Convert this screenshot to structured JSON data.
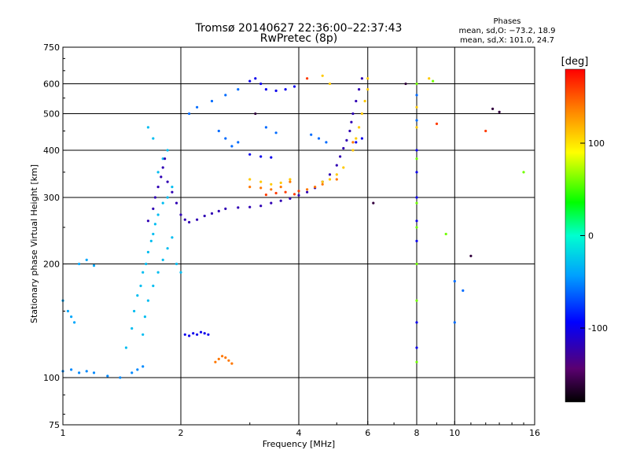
{
  "chart_data": {
    "type": "scatter",
    "title": "Tromsø 20140627 22:36:00–22:37:43",
    "subtitle": "RwPretec (8p)",
    "xlabel": "Frequency [MHz]",
    "ylabel": "Stationary phase Virtual Height [km]",
    "x_scale": "log",
    "y_scale": "log",
    "xlim": [
      1,
      16
    ],
    "ylim": [
      75,
      750
    ],
    "x_ticks": [
      1,
      2,
      4,
      6,
      8,
      10,
      16
    ],
    "y_ticks": [
      75,
      100,
      200,
      300,
      400,
      500,
      600,
      750
    ],
    "grid_x": [
      2,
      4,
      6,
      8,
      10
    ],
    "grid_y": [
      100,
      200,
      300,
      400,
      500,
      600
    ],
    "legend": {
      "title": "Phases",
      "lines": [
        "mean, sd,O: −73.2, 18.9",
        "mean, sd,X: 101.0, 24.7"
      ],
      "placement": "top-right"
    },
    "colorbar": {
      "label": "[deg]",
      "range": [
        -180,
        180
      ],
      "ticks": [
        100,
        0,
        -100
      ]
    },
    "series": [
      {
        "color_deg": -50,
        "points": [
          [
            1.0,
            104
          ],
          [
            1.05,
            105
          ],
          [
            1.1,
            103
          ],
          [
            1.15,
            104
          ],
          [
            1.2,
            103
          ],
          [
            1.3,
            101
          ],
          [
            1.4,
            100
          ],
          [
            1.5,
            103
          ],
          [
            1.55,
            105
          ],
          [
            1.6,
            107
          ]
        ]
      },
      {
        "color_deg": -40,
        "points": [
          [
            1.0,
            160
          ],
          [
            1.03,
            150
          ],
          [
            1.05,
            145
          ],
          [
            1.07,
            140
          ],
          [
            1.1,
            200
          ],
          [
            1.15,
            205
          ],
          [
            1.2,
            198
          ]
        ]
      },
      {
        "color_deg": -30,
        "points": [
          [
            1.45,
            120
          ],
          [
            1.5,
            135
          ],
          [
            1.52,
            150
          ],
          [
            1.55,
            165
          ],
          [
            1.58,
            175
          ],
          [
            1.6,
            190
          ],
          [
            1.63,
            200
          ],
          [
            1.65,
            215
          ],
          [
            1.68,
            230
          ],
          [
            1.7,
            240
          ],
          [
            1.72,
            255
          ],
          [
            1.75,
            270
          ],
          [
            1.8,
            290
          ],
          [
            1.85,
            300
          ],
          [
            1.9,
            320
          ],
          [
            1.75,
            350
          ],
          [
            1.8,
            380
          ],
          [
            1.85,
            400
          ],
          [
            1.7,
            430
          ],
          [
            1.65,
            460
          ],
          [
            1.6,
            130
          ],
          [
            1.62,
            145
          ],
          [
            1.65,
            160
          ],
          [
            1.7,
            175
          ],
          [
            1.75,
            190
          ],
          [
            1.8,
            205
          ],
          [
            1.85,
            220
          ],
          [
            1.9,
            235
          ],
          [
            1.95,
            200
          ],
          [
            2.0,
            190
          ]
        ]
      },
      {
        "color_deg": -120,
        "points": [
          [
            1.65,
            260
          ],
          [
            1.7,
            280
          ],
          [
            1.72,
            300
          ],
          [
            1.75,
            320
          ],
          [
            1.78,
            340
          ],
          [
            1.8,
            360
          ],
          [
            1.82,
            380
          ],
          [
            1.85,
            330
          ],
          [
            1.9,
            310
          ],
          [
            1.95,
            290
          ],
          [
            2.0,
            270
          ],
          [
            2.05,
            262
          ],
          [
            2.1,
            258
          ],
          [
            2.2,
            262
          ],
          [
            2.3,
            268
          ],
          [
            2.4,
            272
          ],
          [
            2.5,
            276
          ],
          [
            2.6,
            280
          ],
          [
            2.8,
            282
          ],
          [
            3.0,
            283
          ],
          [
            3.2,
            285
          ],
          [
            3.4,
            290
          ],
          [
            3.6,
            294
          ],
          [
            3.8,
            298
          ],
          [
            4.0,
            304
          ],
          [
            4.2,
            310
          ],
          [
            4.4,
            318
          ],
          [
            4.6,
            330
          ],
          [
            4.8,
            345
          ],
          [
            5.0,
            365
          ],
          [
            5.1,
            385
          ],
          [
            5.2,
            405
          ],
          [
            5.3,
            425
          ],
          [
            5.4,
            450
          ],
          [
            5.45,
            475
          ],
          [
            5.5,
            500
          ],
          [
            5.6,
            540
          ],
          [
            5.7,
            580
          ],
          [
            5.8,
            620
          ]
        ]
      },
      {
        "color_deg": -100,
        "points": [
          [
            2.05,
            130
          ],
          [
            2.1,
            129
          ],
          [
            2.15,
            131
          ],
          [
            2.2,
            130
          ],
          [
            2.25,
            132
          ],
          [
            2.3,
            131
          ],
          [
            2.35,
            130
          ],
          [
            3.0,
            610
          ],
          [
            3.1,
            620
          ],
          [
            3.2,
            600
          ],
          [
            3.3,
            580
          ],
          [
            3.5,
            575
          ],
          [
            3.7,
            580
          ],
          [
            3.9,
            590
          ],
          [
            3.0,
            390
          ],
          [
            3.2,
            385
          ],
          [
            3.4,
            383
          ],
          [
            5.6,
            420
          ],
          [
            5.8,
            430
          ],
          [
            8.0,
            400
          ],
          [
            8.0,
            350
          ],
          [
            8.0,
            300
          ],
          [
            8.0,
            260
          ],
          [
            8.0,
            230
          ],
          [
            8.0,
            140
          ],
          [
            8.0,
            120
          ]
        ]
      },
      {
        "color_deg": -60,
        "points": [
          [
            2.1,
            500
          ],
          [
            2.2,
            520
          ],
          [
            2.4,
            540
          ],
          [
            2.6,
            560
          ],
          [
            2.8,
            580
          ],
          [
            2.5,
            450
          ],
          [
            2.6,
            430
          ],
          [
            2.7,
            410
          ],
          [
            2.8,
            420
          ],
          [
            3.3,
            460
          ],
          [
            3.5,
            445
          ],
          [
            4.3,
            440
          ],
          [
            4.5,
            430
          ],
          [
            4.7,
            420
          ],
          [
            8.0,
            560
          ],
          [
            8.0,
            480
          ],
          [
            10.0,
            180
          ],
          [
            10.0,
            140
          ],
          [
            10.5,
            170
          ]
        ]
      },
      {
        "color_deg": 140,
        "points": [
          [
            2.45,
            110
          ],
          [
            2.5,
            112
          ],
          [
            2.55,
            114
          ],
          [
            2.6,
            113
          ],
          [
            2.65,
            111
          ],
          [
            2.7,
            109
          ],
          [
            3.0,
            320
          ],
          [
            3.2,
            318
          ],
          [
            3.4,
            315
          ],
          [
            3.6,
            320
          ],
          [
            3.8,
            330
          ],
          [
            4.2,
            315
          ],
          [
            4.4,
            320
          ],
          [
            4.6,
            325
          ],
          [
            5.0,
            335
          ],
          [
            5.5,
            420
          ]
        ]
      },
      {
        "color_deg": 110,
        "points": [
          [
            3.0,
            335
          ],
          [
            3.2,
            330
          ],
          [
            3.4,
            325
          ],
          [
            3.6,
            328
          ],
          [
            3.8,
            335
          ],
          [
            4.6,
            330
          ],
          [
            4.8,
            335
          ],
          [
            5.0,
            345
          ],
          [
            5.2,
            360
          ],
          [
            5.5,
            400
          ],
          [
            5.6,
            430
          ],
          [
            5.7,
            460
          ],
          [
            5.8,
            500
          ],
          [
            5.9,
            540
          ],
          [
            6.0,
            580
          ],
          [
            6.0,
            620
          ],
          [
            4.6,
            630
          ],
          [
            4.8,
            600
          ],
          [
            8.0,
            520
          ],
          [
            8.0,
            460
          ],
          [
            8.6,
            620
          ]
        ]
      },
      {
        "color_deg": 160,
        "points": [
          [
            3.3,
            305
          ],
          [
            3.5,
            308
          ],
          [
            3.7,
            310
          ],
          [
            3.9,
            306
          ],
          [
            4.0,
            312
          ],
          [
            4.2,
            620
          ],
          [
            9.0,
            470
          ],
          [
            12.0,
            450
          ]
        ]
      },
      {
        "color_deg": 60,
        "points": [
          [
            8.0,
            600
          ],
          [
            8.0,
            380
          ],
          [
            8.0,
            290
          ],
          [
            8.0,
            250
          ],
          [
            8.0,
            200
          ],
          [
            8.0,
            160
          ],
          [
            8.0,
            110
          ],
          [
            8.8,
            610
          ],
          [
            9.5,
            240
          ],
          [
            15.0,
            350
          ]
        ]
      },
      {
        "color_deg": -160,
        "points": [
          [
            3.1,
            500
          ],
          [
            6.2,
            290
          ],
          [
            7.5,
            600
          ],
          [
            11.0,
            210
          ],
          [
            12.5,
            515
          ],
          [
            13.0,
            505
          ]
        ]
      }
    ]
  }
}
